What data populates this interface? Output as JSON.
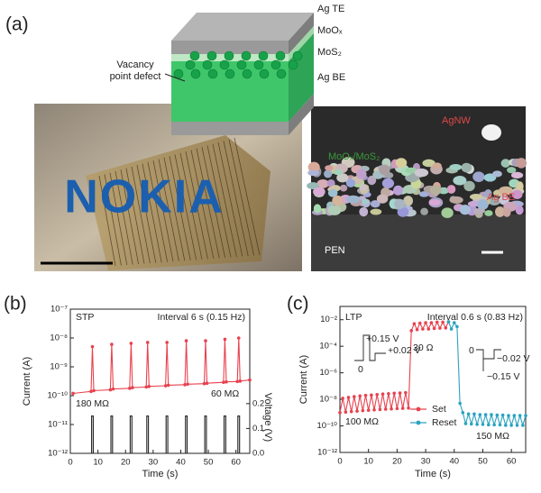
{
  "panel_labels": [
    "(a)",
    "(b)",
    "(c)"
  ],
  "schematic": {
    "layers": [
      "Ag TE",
      "MoOₓ",
      "MoS₂",
      "Ag BE"
    ],
    "defect_label": [
      "Vacancy",
      "point defect"
    ]
  },
  "photo": {
    "logo": "NOKIA"
  },
  "sem": {
    "labels": [
      "AgNW",
      "MoOₓ/MoS₂",
      "Ag BE",
      "PEN"
    ]
  },
  "chart_data": [
    {
      "type": "line",
      "xlabel": "Time (s)",
      "ylabel": "Current (A)",
      "y2label": "Voltage (V)",
      "xlim": [
        0,
        65
      ],
      "xticks": [
        0,
        10,
        20,
        30,
        40,
        50,
        60
      ],
      "yscale": "log",
      "ylim": [
        1e-12,
        1e-07
      ],
      "yticks": [
        {
          "value": 1e-12,
          "label": "10⁻¹²"
        },
        {
          "value": 1e-11,
          "label": "10⁻¹¹"
        },
        {
          "value": 1e-10,
          "label": "10⁻¹⁰"
        },
        {
          "value": 1e-09,
          "label": "10⁻⁹"
        },
        {
          "value": 1e-08,
          "label": "10⁻⁸"
        },
        {
          "value": 1e-07,
          "label": "10⁻⁷"
        }
      ],
      "y2lim": [
        0,
        0.58
      ],
      "y2ticks": [
        {
          "value": 0,
          "label": "0.0"
        },
        0.1,
        0.2
      ],
      "annotations": [
        "STP",
        "Interval 6 s (0.15 Hz)",
        "180 MΩ",
        "60 MΩ"
      ],
      "series": [
        {
          "color": "#e8424f",
          "markers": true,
          "x": [
            1,
            7.5,
            8,
            8.5,
            14.5,
            15,
            15.5,
            21.5,
            22,
            22.5,
            27.5,
            28,
            28.5,
            34.5,
            35,
            35.5,
            41.5,
            42,
            42.5,
            48.5,
            49,
            49.5,
            55.5,
            56,
            56.5,
            60.5,
            61,
            61.5,
            65
          ],
          "values": [
            1.2e-10,
            1.4e-10,
            5e-09,
            1.5e-10,
            1.6e-10,
            6e-09,
            1.7e-10,
            1.8e-10,
            6.5e-09,
            1.9e-10,
            2e-10,
            7e-09,
            2.1e-10,
            2.2e-10,
            7e-09,
            2.3e-10,
            2.4e-10,
            8e-09,
            2.5e-10,
            2.6e-10,
            8e-09,
            2.7e-10,
            2.9e-10,
            9e-09,
            3e-10,
            3.1e-10,
            1e-08,
            3.2e-10,
            3.5e-10
          ]
        },
        {
          "color": "#222222",
          "markers": false,
          "axis": "y2",
          "x": [
            0,
            7.7,
            7.7,
            8.3,
            8.3,
            14.7,
            14.7,
            15.3,
            15.3,
            21.7,
            21.7,
            22.3,
            22.3,
            27.7,
            27.7,
            28.3,
            28.3,
            34.7,
            34.7,
            35.3,
            35.3,
            41.7,
            41.7,
            42.3,
            42.3,
            48.7,
            48.7,
            49.3,
            49.3,
            55.7,
            55.7,
            56.3,
            56.3,
            60.7,
            60.7,
            61.3,
            61.3,
            65
          ],
          "values": [
            0,
            0,
            0.15,
            0.15,
            0,
            0,
            0.15,
            0.15,
            0,
            0,
            0.15,
            0.15,
            0,
            0,
            0.15,
            0.15,
            0,
            0,
            0.15,
            0.15,
            0,
            0,
            0.15,
            0.15,
            0,
            0,
            0.15,
            0.15,
            0,
            0,
            0.15,
            0.15,
            0,
            0,
            0.15,
            0.15,
            0,
            0
          ]
        }
      ]
    },
    {
      "type": "line",
      "xlabel": "Time (s)",
      "ylabel": "Current (A)",
      "xlim": [
        0,
        65
      ],
      "xticks": [
        0,
        10,
        20,
        30,
        40,
        50,
        60
      ],
      "yscale": "log",
      "ylim": [
        1e-12,
        0.1
      ],
      "yticks": [
        {
          "value": 1e-12,
          "label": "10⁻¹²"
        },
        {
          "value": 1e-10,
          "label": "10⁻¹⁰"
        },
        {
          "value": 1e-08,
          "label": "10⁻⁸"
        },
        {
          "value": 1e-06,
          "label": "10⁻⁶"
        },
        {
          "value": 0.0001,
          "label": "10⁻⁴"
        },
        {
          "value": 0.01,
          "label": "10⁻²"
        }
      ],
      "legend": "bottom-center",
      "annotations": [
        "LTP",
        "Interval 0.6 s (0.83 Hz)",
        "30 Ω",
        "100 MΩ",
        "150 MΩ",
        "+0.15 V",
        "+0.02 V",
        "0",
        "0",
        "−0.02 V",
        "−0.15 V"
      ],
      "series": [
        {
          "name": "Set",
          "color": "#e8424f",
          "markers": true,
          "x": [
            0,
            1,
            2,
            3,
            4,
            5,
            6,
            7,
            8,
            9,
            10,
            11,
            12,
            13,
            14,
            15,
            16,
            17,
            18,
            19,
            20,
            21,
            22,
            23,
            24,
            25,
            26,
            27,
            28,
            29,
            30,
            31,
            32,
            33,
            34,
            35,
            36,
            37,
            38
          ],
          "values": [
            1e-09,
            1.2e-08,
            1.1e-09,
            1.4e-08,
            1.2e-09,
            1.6e-08,
            1.3e-09,
            1.8e-08,
            1.4e-09,
            2e-08,
            1.5e-09,
            2.1e-08,
            1.6e-09,
            2.3e-08,
            1.7e-09,
            2.5e-08,
            1.8e-09,
            2.7e-08,
            1.9e-09,
            2.9e-08,
            2e-09,
            3e-08,
            2.1e-09,
            3.2e-08,
            2.2e-09,
            0.0015,
            0.005,
            0.0018,
            0.0055,
            0.002,
            0.006,
            0.002,
            0.006,
            0.0022,
            0.0065,
            0.0023,
            0.0065,
            0.0024,
            0.007
          ]
        },
        {
          "name": "Reset",
          "color": "#2aa3c0",
          "markers": true,
          "x": [
            38,
            39,
            40,
            41,
            42,
            43,
            44,
            45,
            46,
            47,
            48,
            49,
            50,
            51,
            52,
            53,
            54,
            55,
            56,
            57,
            58,
            59,
            60,
            61,
            62,
            63,
            64,
            65
          ],
          "values": [
            0.007,
            0.002,
            0.006,
            0.003,
            5e-09,
            1e-09,
            1.5e-10,
            8e-10,
            1.4e-10,
            8e-10,
            1.3e-10,
            7e-10,
            1.3e-10,
            7e-10,
            1.2e-10,
            7e-10,
            1.2e-10,
            6.5e-10,
            1.2e-10,
            6.5e-10,
            1.1e-10,
            6e-10,
            1.1e-10,
            6e-10,
            1.1e-10,
            6e-10,
            1.1e-10,
            6e-10
          ]
        }
      ]
    }
  ]
}
